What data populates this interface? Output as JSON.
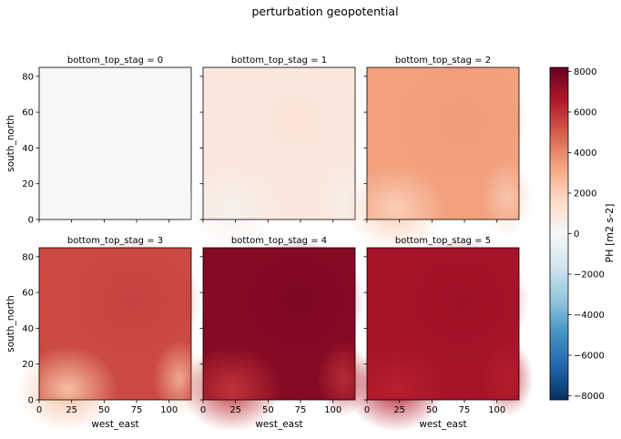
{
  "chart_data": {
    "type": "heatmap",
    "title": "perturbation geopotential",
    "xlabel": "west_east",
    "ylabel": "south_north",
    "facet_var": "bottom_top_stag",
    "xlim": [
      0,
      117
    ],
    "ylim": [
      0,
      85
    ],
    "xticks": [
      0,
      25,
      50,
      75,
      100
    ],
    "yticks": [
      0,
      20,
      40,
      60,
      80
    ],
    "colorbar": {
      "label": "PH [m2 s-2]",
      "range": [
        -8200,
        8200
      ],
      "ticks": [
        -8000,
        -6000,
        -4000,
        -2000,
        0,
        2000,
        4000,
        6000,
        8000
      ],
      "colormap": "RdBu_r"
    },
    "panels": [
      {
        "title": "bottom_top_stag = 0",
        "level": 0,
        "base_value": 0,
        "min_value": 0,
        "max_value": 0
      },
      {
        "title": "bottom_top_stag = 1",
        "level": 1,
        "base_value": 900,
        "min_value": 350,
        "max_value": 1100
      },
      {
        "title": "bottom_top_stag = 2",
        "level": 2,
        "base_value": 3400,
        "min_value": 2000,
        "max_value": 3500
      },
      {
        "title": "bottom_top_stag = 3",
        "level": 3,
        "base_value": 5400,
        "min_value": 2500,
        "max_value": 5600
      },
      {
        "title": "bottom_top_stag = 4",
        "level": 4,
        "base_value": 7500,
        "min_value": 5900,
        "max_value": 7700
      },
      {
        "title": "bottom_top_stag = 5",
        "level": 5,
        "base_value": 6800,
        "min_value": 6400,
        "max_value": 7000
      }
    ]
  }
}
